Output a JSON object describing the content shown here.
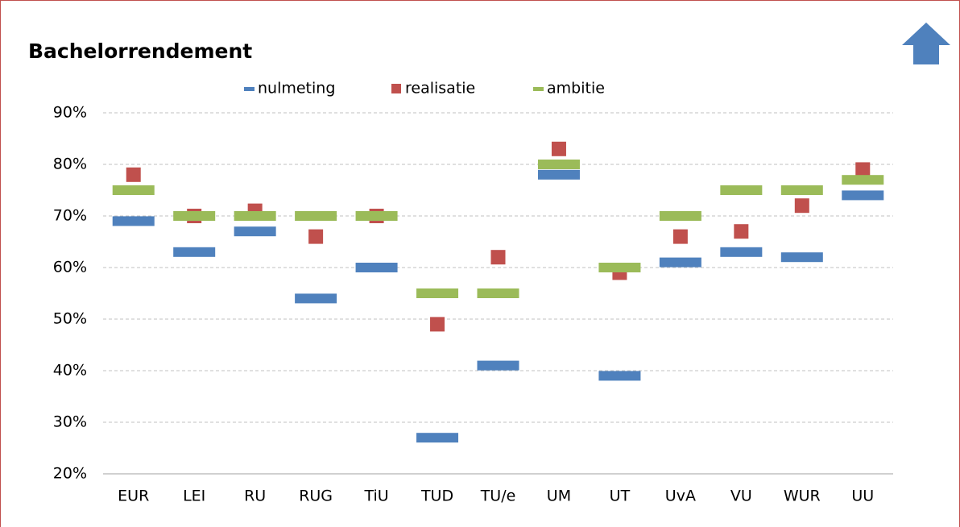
{
  "chart_data": {
    "type": "dot",
    "title": "Bachelorrendement",
    "categories": [
      "EUR",
      "LEI",
      "RU",
      "RUG",
      "TiU",
      "TUD",
      "TU/e",
      "UM",
      "UT",
      "UvA",
      "VU",
      "WUR",
      "UU"
    ],
    "series": [
      {
        "name": "nulmeting",
        "color": "#4f81bd",
        "marker": "dash",
        "values": [
          69,
          63,
          67,
          54,
          60,
          27,
          41,
          78,
          39,
          61,
          63,
          62,
          74
        ]
      },
      {
        "name": "realisatie",
        "color": "#c0504d",
        "marker": "square",
        "values": [
          78,
          70,
          71,
          66,
          70,
          49,
          62,
          83,
          59,
          66,
          67,
          72,
          79
        ]
      },
      {
        "name": "ambitie",
        "color": "#9bbb59",
        "marker": "dash",
        "values": [
          75,
          70,
          70,
          70,
          70,
          55,
          55,
          80,
          60,
          70,
          75,
          75,
          77
        ]
      }
    ],
    "ylim": [
      20,
      90
    ],
    "yticks": [
      {
        "value": 20,
        "label": "20%"
      },
      {
        "value": 30,
        "label": "30%"
      },
      {
        "value": 40,
        "label": "40%"
      },
      {
        "value": 50,
        "label": "50%"
      },
      {
        "value": 60,
        "label": "60%"
      },
      {
        "value": 70,
        "label": "70%"
      },
      {
        "value": 80,
        "label": "80%"
      },
      {
        "value": 90,
        "label": "90%"
      }
    ],
    "grid": true,
    "legend": "top"
  }
}
